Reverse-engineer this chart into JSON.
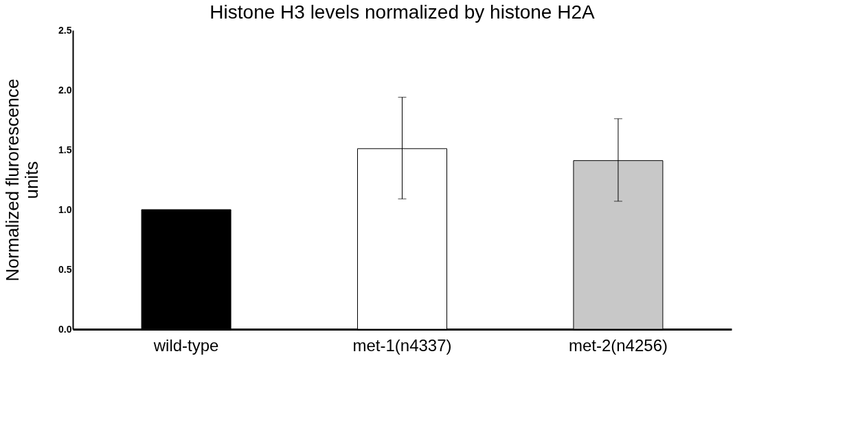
{
  "chart_data": {
    "type": "bar",
    "title": "Histone H3 levels normalized by histone H2A",
    "ylabel": "Normalized flurorescence units",
    "categories": [
      "wild-type",
      "met-1(n4337)",
      "met-2(n4256)"
    ],
    "values": [
      1.0,
      1.51,
      1.41
    ],
    "colors": [
      "#000000",
      "#ffffff",
      "#c8c8c8"
    ],
    "errors": [
      null,
      [
        1.09,
        1.94
      ],
      [
        1.07,
        1.76
      ]
    ],
    "ylim": [
      0,
      2.5
    ],
    "yticks": [
      {
        "value": 0,
        "label": "0.0"
      },
      {
        "value": 0.5,
        "label": "0.5"
      },
      {
        "value": 1,
        "label": "1.0"
      },
      {
        "value": 1.5,
        "label": "1.5"
      },
      {
        "value": 2,
        "label": "2.0"
      },
      {
        "value": 2.5,
        "label": "2.5"
      }
    ],
    "grid": false
  }
}
